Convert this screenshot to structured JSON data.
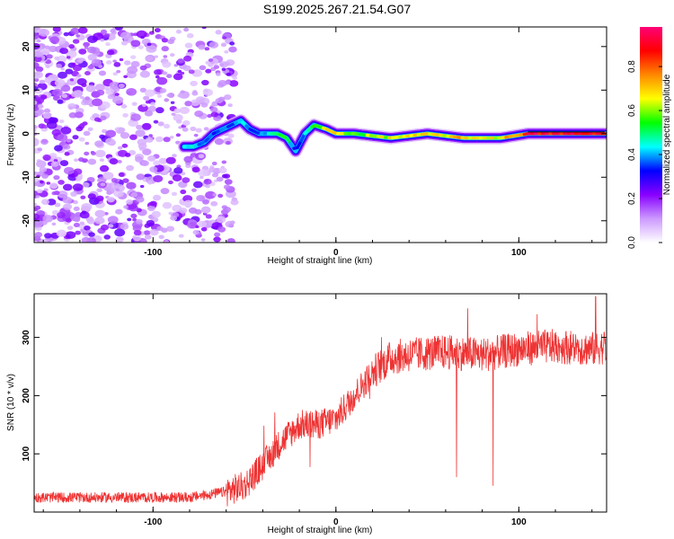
{
  "title": "S199.2025.267.21.54.G07",
  "chart_data": [
    {
      "type": "heatmap",
      "name": "spectrogram",
      "xlabel": "Height of straight line (km)",
      "ylabel": "Frequency (Hz)",
      "xlim": [
        -165,
        148
      ],
      "ylim": [
        -25,
        24.5
      ],
      "xticks": [
        -100,
        0,
        100
      ],
      "xtick_labels": [
        "-100",
        "0",
        "100"
      ],
      "yticks": [
        -20,
        -10,
        0,
        10,
        20
      ],
      "ytick_labels": [
        "-20",
        "-10",
        "0",
        "10",
        "20"
      ],
      "ridge": {
        "description": "dominant frequency track (Hz) vs height (km)",
        "x": [
          -83,
          -78,
          -72,
          -67,
          -62,
          -57,
          -52,
          -47,
          -42,
          -37,
          -32,
          -27,
          -22,
          -17,
          -12,
          -5,
          0,
          10,
          30,
          50,
          70,
          90,
          105,
          120,
          135,
          147
        ],
        "y": [
          -3,
          -3,
          -2,
          0,
          1,
          2,
          3,
          1,
          0,
          0,
          0,
          -1,
          -4,
          0,
          2,
          1,
          0,
          0,
          -1,
          0,
          -1,
          -1,
          0,
          0,
          0,
          0
        ],
        "amplitude": [
          0.45,
          0.45,
          0.4,
          0.35,
          0.4,
          0.35,
          0.45,
          0.4,
          0.4,
          0.5,
          0.55,
          0.55,
          0.3,
          0.45,
          0.6,
          0.7,
          0.75,
          0.6,
          0.7,
          0.7,
          0.75,
          0.7,
          0.95,
          0.95,
          0.95,
          0.95
        ]
      },
      "noise_region_x": [
        -165,
        -55
      ],
      "colorbar": {
        "label": "Normalized spectral amplitude",
        "range": [
          0,
          0.98
        ],
        "ticks": [
          "0.0",
          "0.2",
          "0.4",
          "0.6",
          "0.8"
        ],
        "colors": [
          "#ffffff",
          "#cc99ff",
          "#8800ff",
          "#0000ff",
          "#00ffff",
          "#00ff00",
          "#ffff00",
          "#ff8800",
          "#ff0000",
          "#ff0077"
        ]
      }
    },
    {
      "type": "line",
      "name": "snr",
      "xlabel": "Height of straight line (km)",
      "ylabel": "SNR (10 * v/v)",
      "xlim": [
        -165,
        148
      ],
      "ylim": [
        0,
        375
      ],
      "xticks": [
        -100,
        0,
        100
      ],
      "xtick_labels": [
        "-100",
        "0",
        "100"
      ],
      "yticks": [
        100,
        200,
        300
      ],
      "ytick_labels": [
        "100",
        "200",
        "300"
      ],
      "line_color": "#ee3333",
      "trend": {
        "x": [
          -165,
          -80,
          -60,
          -50,
          -40,
          -30,
          -20,
          -10,
          0,
          10,
          20,
          30,
          40,
          60,
          80,
          100,
          120,
          140,
          148
        ],
        "y": [
          25,
          25,
          35,
          45,
          80,
          120,
          150,
          150,
          160,
          200,
          240,
          265,
          270,
          275,
          270,
          280,
          285,
          280,
          285
        ]
      },
      "spikes": [
        {
          "x": 66,
          "y": 60
        },
        {
          "x": 86,
          "y": 45
        },
        {
          "x": 72,
          "y": 350
        },
        {
          "x": 142,
          "y": 370
        },
        {
          "x": 110,
          "y": 340
        }
      ]
    }
  ]
}
